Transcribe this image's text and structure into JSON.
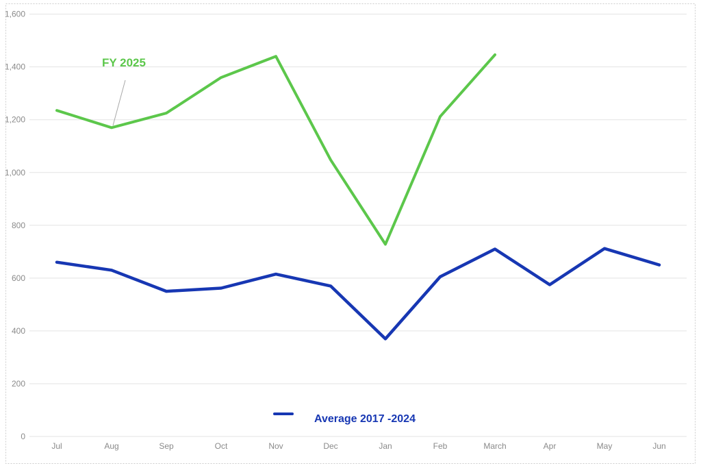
{
  "chart_data": {
    "type": "line",
    "categories": [
      "Jul",
      "Aug",
      "Sep",
      "Oct",
      "Nov",
      "Dec",
      "Jan",
      "Feb",
      "March",
      "Apr",
      "May",
      "Jun"
    ],
    "series": [
      {
        "name": "FY 2025",
        "color": "#5cc74b",
        "stroke_width": 4,
        "values": [
          1235,
          1170,
          1225,
          1360,
          1440,
          1048,
          728,
          1212,
          1446,
          null,
          null,
          null
        ]
      },
      {
        "name": "Average 2017 -2024",
        "color": "#1737b3",
        "stroke_width": 4.5,
        "values": [
          660,
          630,
          550,
          562,
          615,
          570,
          370,
          605,
          710,
          575,
          712,
          650
        ]
      }
    ],
    "title": "",
    "xlabel": "",
    "ylabel": "",
    "ylim": [
      0,
      1600
    ],
    "ytick_step": 200,
    "ytick_labels": [
      "0",
      "200",
      "400",
      "600",
      "800",
      "1,000",
      "1,200",
      "1,400",
      "1,600"
    ],
    "grid": true,
    "legend_position": "bottom-center",
    "annotation": {
      "text": "FY 2025",
      "target_category": "Aug",
      "target_series": "FY 2025"
    },
    "legend": {
      "label": "Average 2017 -2024"
    }
  },
  "colors": {
    "grid_line": "#e3e3e3",
    "axis_text": "#8a8a8a",
    "outer_border": "#cccccc",
    "leader_line": "#a8a8a8",
    "background": "#ffffff"
  }
}
